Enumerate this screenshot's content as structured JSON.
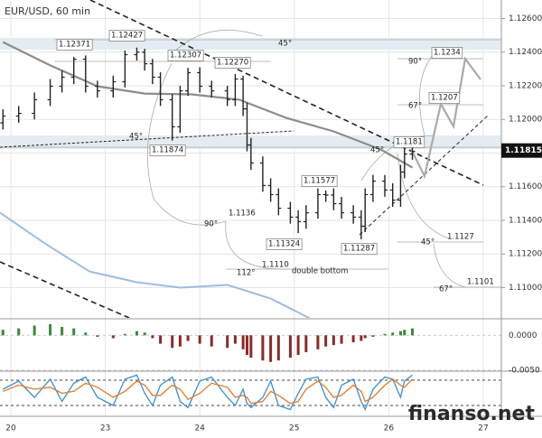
{
  "chart_data": {
    "type": "ohlc",
    "title": "EUR/USD, 60 min",
    "watermark": "finanso.net",
    "xlim": [
      -2.75,
      124.6
    ],
    "xticks": [
      {
        "value": 0,
        "label": "20"
      },
      {
        "value": 24,
        "label": "23"
      },
      {
        "value": 48,
        "label": "24"
      },
      {
        "value": 72,
        "label": "25"
      },
      {
        "value": 96,
        "label": "26"
      },
      {
        "value": 120,
        "label": "27"
      }
    ],
    "ylim": [
      1.1082,
      1.1271
    ],
    "yticks": [
      {
        "value": 1.126,
        "label": "1.12600"
      },
      {
        "value": 1.124,
        "label": "1.12400"
      },
      {
        "value": 1.122,
        "label": "1.12200"
      },
      {
        "value": 1.12,
        "label": "1.12000"
      },
      {
        "value": 1.118,
        "label": "1.11800"
      },
      {
        "value": 1.116,
        "label": "1.11600"
      },
      {
        "value": 1.114,
        "label": "1.11400"
      },
      {
        "value": 1.112,
        "label": "1.11200"
      },
      {
        "value": 1.11,
        "label": "1.11000"
      }
    ],
    "grid": true,
    "color": "#222222",
    "last_price": {
      "value": 1.11815,
      "label": "1.11815"
    },
    "x": [
      -2,
      2,
      6,
      10,
      13,
      16,
      19,
      22,
      26,
      29,
      32,
      34,
      36,
      38,
      41,
      43,
      45,
      48,
      51,
      55,
      57,
      59,
      60,
      61,
      64,
      66,
      68,
      71,
      73,
      75,
      78,
      80,
      82,
      84,
      87,
      89,
      90,
      92,
      95,
      97,
      99,
      100,
      102
    ],
    "open": [
      1.1198,
      1.1202,
      1.12036,
      1.12117,
      1.12197,
      1.12251,
      1.12358,
      1.12197,
      1.1217,
      1.12224,
      1.12385,
      1.124,
      1.12331,
      1.12251,
      1.12117,
      1.11956,
      1.1217,
      1.12278,
      1.12197,
      1.1217,
      1.12117,
      1.1224,
      1.12063,
      1.11848,
      1.11741,
      1.11607,
      1.11553,
      1.11472,
      1.11419,
      1.11392,
      1.11445,
      1.11553,
      1.1155,
      1.11499,
      1.11445,
      1.11419,
      1.11365,
      1.11553,
      1.11633,
      1.1158,
      1.1152,
      1.11687,
      1.11794
    ],
    "high": [
      1.1206,
      1.1208,
      1.1216,
      1.1224,
      1.1229,
      1.12371,
      1.1238,
      1.1223,
      1.1226,
      1.1241,
      1.12427,
      1.1242,
      1.1236,
      1.1228,
      1.1215,
      1.122,
      1.12307,
      1.1231,
      1.1223,
      1.122,
      1.1227,
      1.1226,
      1.121,
      1.1189,
      1.1178,
      1.1165,
      1.1159,
      1.1151,
      1.1146,
      1.1149,
      1.1159,
      1.11577,
      1.1159,
      1.1154,
      1.1149,
      1.1146,
      1.1159,
      1.1167,
      1.1167,
      1.1162,
      1.1173,
      1.1183,
      1.1184
    ],
    "low": [
      1.1194,
      1.1198,
      1.12,
      1.1208,
      1.1216,
      1.1221,
      1.1216,
      1.1213,
      1.1213,
      1.1219,
      1.1235,
      1.1229,
      1.1221,
      1.1208,
      1.11874,
      1.1192,
      1.1214,
      1.1216,
      1.1213,
      1.1208,
      1.1208,
      1.1202,
      1.1181,
      1.117,
      1.1157,
      1.1151,
      1.1143,
      1.1138,
      1.11324,
      1.1135,
      1.1141,
      1.1151,
      1.1146,
      1.1141,
      1.1138,
      1.11287,
      1.1133,
      1.1151,
      1.1154,
      1.1148,
      1.1148,
      1.1165,
      1.1176
    ],
    "close": [
      1.1202,
      1.12036,
      1.12117,
      1.12197,
      1.12251,
      1.12358,
      1.12197,
      1.1217,
      1.12224,
      1.12385,
      1.124,
      1.12331,
      1.12251,
      1.12117,
      1.11956,
      1.1217,
      1.12278,
      1.12197,
      1.1217,
      1.12117,
      1.1224,
      1.12063,
      1.11848,
      1.11741,
      1.11607,
      1.11553,
      1.11472,
      1.11419,
      1.11392,
      1.11445,
      1.11553,
      1.1155,
      1.11499,
      1.11445,
      1.11419,
      1.11365,
      1.11553,
      1.11633,
      1.1158,
      1.1152,
      1.11687,
      1.11794,
      1.1181
    ],
    "ma": {
      "color": "#8c8c8c",
      "x": [
        -2,
        10,
        22,
        34,
        46,
        58,
        70,
        82,
        94,
        102
      ],
      "values": [
        1.1246,
        1.12321,
        1.12197,
        1.12154,
        1.12149,
        1.12117,
        1.12009,
        1.11929,
        1.11821,
        1.11714
      ]
    },
    "ma_slow": {
      "color": "#9dbde0",
      "x": [
        -2.7,
        9,
        20,
        32,
        43,
        55,
        66,
        76
      ],
      "values": [
        1.11445,
        1.11257,
        1.11096,
        1.11032,
        1.11,
        1.11016,
        1.10935,
        1.10817
      ]
    },
    "annotations": [
      "1.12371",
      "1.12427",
      "1.12307",
      "1.12270",
      "45°",
      "45°",
      "1.11874",
      "90°",
      "1.1234",
      "67°",
      "1.1207",
      "45°",
      "1.1181",
      "1.11577",
      "1.1136",
      "90°",
      "1.11324",
      "1.11287",
      "1.1110",
      "112°",
      "double bottom",
      "45°",
      "1.1127",
      "67°",
      "1.1101"
    ],
    "macd": {
      "ylim": [
        -0.00513,
        0.00224
      ],
      "yticks": [
        {
          "value": 0,
          "label": "0.0000"
        },
        {
          "value": -0.005,
          "label": "-0.0050"
        }
      ],
      "pos_color": "#3a8a3a",
      "neg_color": "#8b2a2a",
      "values": [
        0.0008,
        0.001,
        0.0014,
        0.0016,
        0.0012,
        0.001,
        0.0004,
        -0.0002,
        -0.0004,
        0.0002,
        0.0006,
        0.0004,
        -0.0004,
        -0.0012,
        -0.0018,
        -0.0016,
        -0.0008,
        -0.0012,
        -0.0016,
        -0.0018,
        -0.0012,
        -0.002,
        -0.0028,
        -0.0032,
        -0.0036,
        -0.0038,
        -0.0036,
        -0.0032,
        -0.0028,
        -0.0024,
        -0.002,
        -0.0016,
        -0.0014,
        -0.0012,
        -0.001,
        -0.0008,
        -0.0004,
        -0.0002,
        0.0002,
        0.0004,
        0.0006,
        0.0008,
        0.001
      ]
    },
    "stoch": {
      "ylim": [
        0,
        100
      ],
      "k_color": "#3a8fd9",
      "d_color": "#e07b2a",
      "k": [
        60,
        80,
        40,
        85,
        30,
        75,
        90,
        40,
        20,
        85,
        95,
        50,
        20,
        70,
        90,
        30,
        15,
        80,
        90,
        40,
        20,
        60,
        25,
        15,
        40,
        80,
        20,
        10,
        50,
        85,
        90,
        40,
        15,
        70,
        85,
        30,
        10,
        60,
        90,
        85,
        40,
        80,
        95
      ],
      "d": [
        55,
        70,
        60,
        65,
        50,
        55,
        75,
        65,
        40,
        55,
        80,
        70,
        45,
        45,
        70,
        60,
        35,
        50,
        75,
        65,
        40,
        45,
        40,
        25,
        30,
        55,
        45,
        25,
        30,
        60,
        80,
        65,
        40,
        45,
        70,
        55,
        30,
        40,
        70,
        85,
        70,
        65,
        85
      ]
    }
  }
}
